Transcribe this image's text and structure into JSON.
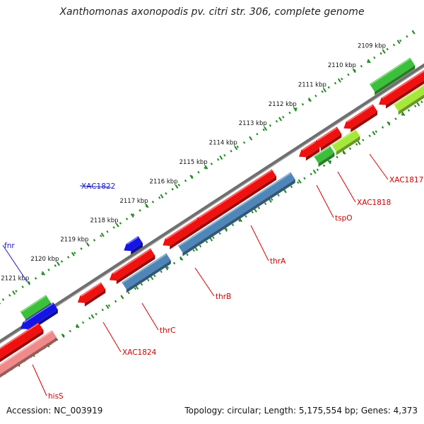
{
  "title": "Xanthomonas axonopodis pv. citri str. 306, complete genome",
  "footer": {
    "accession": "Accession: NC_003919",
    "summary": "Topology: circular; Length: 5,175,554 bp; Genes: 4,373"
  },
  "colors": {
    "backbone": "#6f6f6f",
    "tick_guide": "#1e8a1e",
    "gene_red": "#f01010",
    "gene_blue": "#1414e6",
    "gene_green": "#3cc03c",
    "gene_lime": "#a6e83a",
    "cds_steelblue": "#4f86b8",
    "cds_pink": "#f08a8a",
    "label_red": "#cc0000",
    "label_blue": "#1a1ac8"
  },
  "scale": {
    "ticks": [
      "2109 kbp",
      "2110 kbp",
      "2111 kbp",
      "2112 kbp",
      "2113 kbp",
      "2114 kbp",
      "2115 kbp",
      "2116 kbp",
      "2117 kbp",
      "2118 kbp",
      "2119 kbp",
      "2120 kbp",
      "2121 kbp"
    ]
  },
  "features": [
    {
      "name": "XAC1817",
      "color": "gene_red",
      "start": 2108.6,
      "end": 2109.4
    },
    {
      "name": "XAC1818",
      "color": "gene_red",
      "start": 2111.1,
      "end": 2111.7
    },
    {
      "name": "tspO",
      "color": "gene_red",
      "start": 2111.8,
      "end": 2112.1
    },
    {
      "name": "thrA",
      "color": "gene_red",
      "start": 2114.6,
      "end": 2117.2
    },
    {
      "name": "thrB",
      "color": "gene_red",
      "start": 2117.2,
      "end": 2118.1
    },
    {
      "name": "thrC",
      "color": "gene_red",
      "start": 2118.6,
      "end": 2119.9
    },
    {
      "name": "XAC1824",
      "color": "gene_red",
      "start": 2120.1,
      "end": 2120.5
    },
    {
      "name": "hisS",
      "color": "gene_red",
      "start": 2121.8,
      "end": 2122.9
    },
    {
      "name": "XAC1822",
      "color": "gene_blue",
      "start": 2118.4,
      "end": 2118.7
    },
    {
      "name": "fnr",
      "color": "gene_blue",
      "start": 2121.4,
      "end": 2122.1
    }
  ]
}
